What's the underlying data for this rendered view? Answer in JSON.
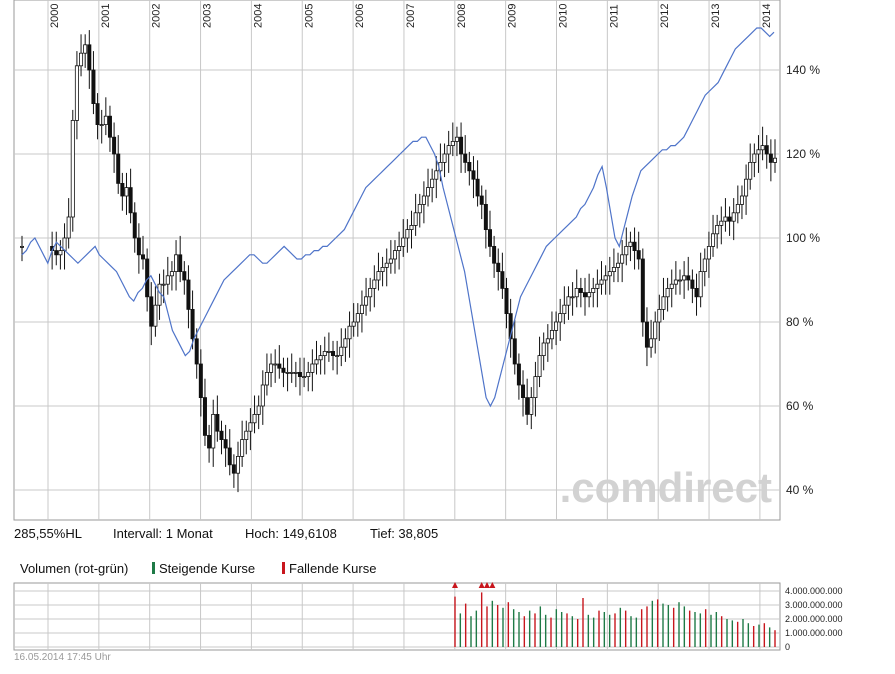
{
  "info": {
    "change": "285,55%HL",
    "interval": "Intervall: 1 Monat",
    "high": "Hoch: 149,6108",
    "low": "Tief:  38,805"
  },
  "volume_header": {
    "title": "Volumen (rot-grün)",
    "rising": "Steigende Kurse",
    "falling": "Fallende Kurse"
  },
  "watermark": ".comdirect",
  "footer": "16.05.2014 17:45 Uhr",
  "colors": {
    "candle": "#111111",
    "line": "#4f74c9",
    "grid": "#c8c8c8",
    "vol_up": "#1e7a46",
    "vol_down": "#c8161d",
    "watermark": "#d2d2d2"
  },
  "chart_data": [
    {
      "type": "candlestick",
      "x_ticks": [
        "2000",
        "2001",
        "2002",
        "2003",
        "2004",
        "2005",
        "2006",
        "2007",
        "2008",
        "2009",
        "2010",
        "2011",
        "2012",
        "2013",
        "2014"
      ],
      "y_ticks": [
        "40 %",
        "60 %",
        "80 %",
        "100 %",
        "120 %",
        "140 %"
      ],
      "ylim": [
        33,
        150
      ],
      "close_series": [
        98,
        97,
        96,
        97,
        100,
        105,
        128,
        141,
        144,
        146,
        140,
        132,
        127,
        127,
        129,
        124,
        120,
        113,
        110,
        112,
        106,
        100,
        96,
        95,
        86,
        79,
        84,
        89,
        89,
        91,
        92,
        96,
        92,
        90,
        83,
        76,
        70,
        62,
        53,
        50,
        58,
        54,
        52,
        50,
        46,
        44,
        48,
        52,
        54,
        56,
        58,
        60,
        65,
        68,
        70,
        70,
        69,
        68,
        68,
        68,
        68,
        67,
        67,
        68,
        70,
        71,
        72,
        73,
        73,
        72,
        72,
        74,
        76,
        79,
        80,
        82,
        84,
        86,
        88,
        90,
        92,
        93,
        94,
        95,
        97,
        98,
        100,
        102,
        103,
        106,
        108,
        110,
        112,
        114,
        116,
        118,
        120,
        122,
        123,
        124,
        120,
        118,
        116,
        114,
        110,
        108,
        102,
        98,
        94,
        92,
        88,
        82,
        76,
        70,
        65,
        62,
        58,
        62,
        67,
        72,
        75,
        76,
        78,
        80,
        82,
        84,
        86,
        86,
        88,
        87,
        86,
        87,
        88,
        89,
        90,
        91,
        92,
        93,
        94,
        96,
        98,
        99,
        97,
        95,
        80,
        74,
        76,
        80,
        83,
        86,
        88,
        89,
        90,
        90,
        91,
        90,
        88,
        86,
        92,
        95,
        98,
        101,
        103,
        104,
        105,
        104,
        106,
        108,
        110,
        114,
        118,
        120,
        121,
        122,
        120,
        118,
        119
      ],
      "line_series": [
        96,
        97,
        99,
        100,
        98,
        96,
        94,
        97,
        99,
        98,
        97,
        96,
        95,
        94,
        95,
        96,
        97,
        98,
        96,
        95,
        94,
        93,
        92,
        90,
        88,
        86,
        85,
        87,
        88,
        90,
        91,
        89,
        87,
        86,
        82,
        78,
        76,
        74,
        72,
        73,
        76,
        78,
        80,
        82,
        84,
        86,
        88,
        90,
        91,
        92,
        93,
        94,
        95,
        96,
        96,
        95,
        94,
        94,
        95,
        96,
        97,
        98,
        97,
        96,
        95,
        95,
        96,
        96,
        97,
        97,
        98,
        98,
        99,
        100,
        101,
        102,
        104,
        106,
        108,
        110,
        112,
        113,
        114,
        115,
        116,
        117,
        118,
        119,
        120,
        121,
        122,
        123,
        123,
        124,
        124,
        122,
        120,
        117,
        112,
        108,
        104,
        100,
        96,
        92,
        86,
        80,
        74,
        68,
        62,
        60,
        62,
        66,
        70,
        74,
        78,
        82,
        86,
        88,
        90,
        92,
        94,
        96,
        98,
        99,
        100,
        101,
        102,
        103,
        104,
        105,
        107,
        108,
        110,
        112,
        115,
        117,
        112,
        106,
        100,
        98,
        102,
        106,
        110,
        113,
        116,
        117,
        118,
        119,
        120,
        121,
        121,
        122,
        122,
        123,
        124,
        126,
        128,
        130,
        132,
        134,
        135,
        136,
        137,
        139,
        141,
        143,
        145,
        146,
        147,
        148,
        149,
        150,
        150,
        149,
        148,
        149
      ],
      "legend": []
    },
    {
      "type": "bar",
      "y_ticks": [
        "0",
        "1.000.000.000",
        "2.000.000.000",
        "3.000.000.000",
        "4.000.000.000"
      ],
      "ylim": [
        0,
        4000000000
      ],
      "values": [
        3600000000,
        2400000000,
        3100000000,
        2200000000,
        2600000000,
        3900000000,
        2900000000,
        3300000000,
        3000000000,
        2800000000,
        3200000000,
        2700000000,
        2500000000,
        2200000000,
        2600000000,
        2400000000,
        2900000000,
        2300000000,
        2100000000,
        2700000000,
        2500000000,
        2400000000,
        2200000000,
        2000000000,
        3500000000,
        2300000000,
        2100000000,
        2600000000,
        2500000000,
        2300000000,
        2400000000,
        2800000000,
        2600000000,
        2200000000,
        2100000000,
        2700000000,
        2900000000,
        3300000000,
        3400000000,
        3100000000,
        3000000000,
        2800000000,
        3200000000,
        2900000000,
        2600000000,
        2500000000,
        2400000000,
        2700000000,
        2300000000,
        2500000000,
        2200000000,
        2000000000,
        1900000000,
        1800000000,
        2000000000,
        1700000000,
        1500000000,
        1600000000,
        1700000000,
        1400000000,
        1200000000
      ],
      "directions": [
        "d",
        "u",
        "d",
        "u",
        "u",
        "d",
        "d",
        "u",
        "d",
        "u",
        "d",
        "u",
        "u",
        "d",
        "u",
        "d",
        "u",
        "u",
        "d",
        "u",
        "u",
        "d",
        "u",
        "d",
        "d",
        "u",
        "u",
        "d",
        "u",
        "u",
        "d",
        "u",
        "d",
        "u",
        "u",
        "d",
        "d",
        "u",
        "d",
        "u",
        "u",
        "d",
        "u",
        "u",
        "d",
        "u",
        "u",
        "d",
        "u",
        "u",
        "d",
        "u",
        "u",
        "d",
        "u",
        "u",
        "d",
        "u",
        "d",
        "u",
        "d"
      ]
    }
  ]
}
